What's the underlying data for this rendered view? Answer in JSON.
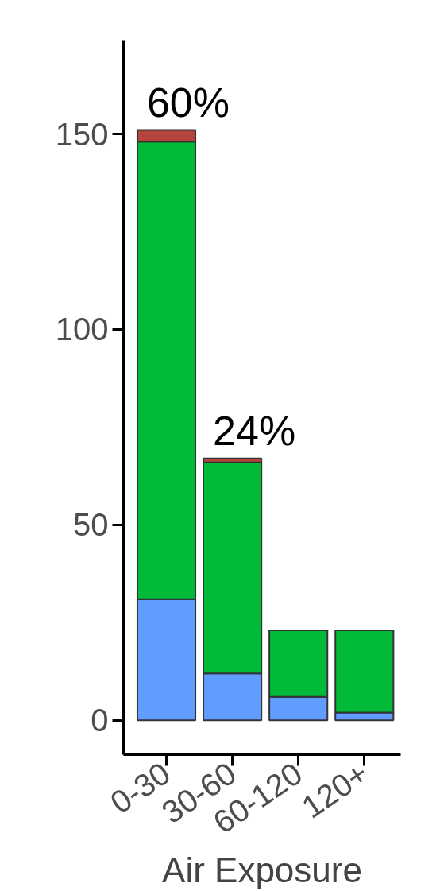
{
  "chart_data": {
    "type": "bar",
    "stacked": true,
    "xlabel": "Air Exposure",
    "categories": [
      "0-30",
      "30-60",
      "60-120",
      "120+"
    ],
    "series": [
      {
        "color": "#619cff",
        "values": [
          31,
          12,
          6,
          2
        ]
      },
      {
        "color": "#00ba38",
        "values": [
          117,
          54,
          17,
          21
        ]
      },
      {
        "color": "#b5443c",
        "values": [
          3,
          1,
          null,
          null
        ]
      }
    ],
    "ylim": [
      -8.8,
      174
    ],
    "yticks": [
      0,
      50,
      100,
      150
    ],
    "grid": false,
    "annotations": [
      {
        "text": "60%",
        "x": "0-30",
        "y": 151
      },
      {
        "text": "24%",
        "x": "30-60",
        "y": 67
      }
    ]
  }
}
